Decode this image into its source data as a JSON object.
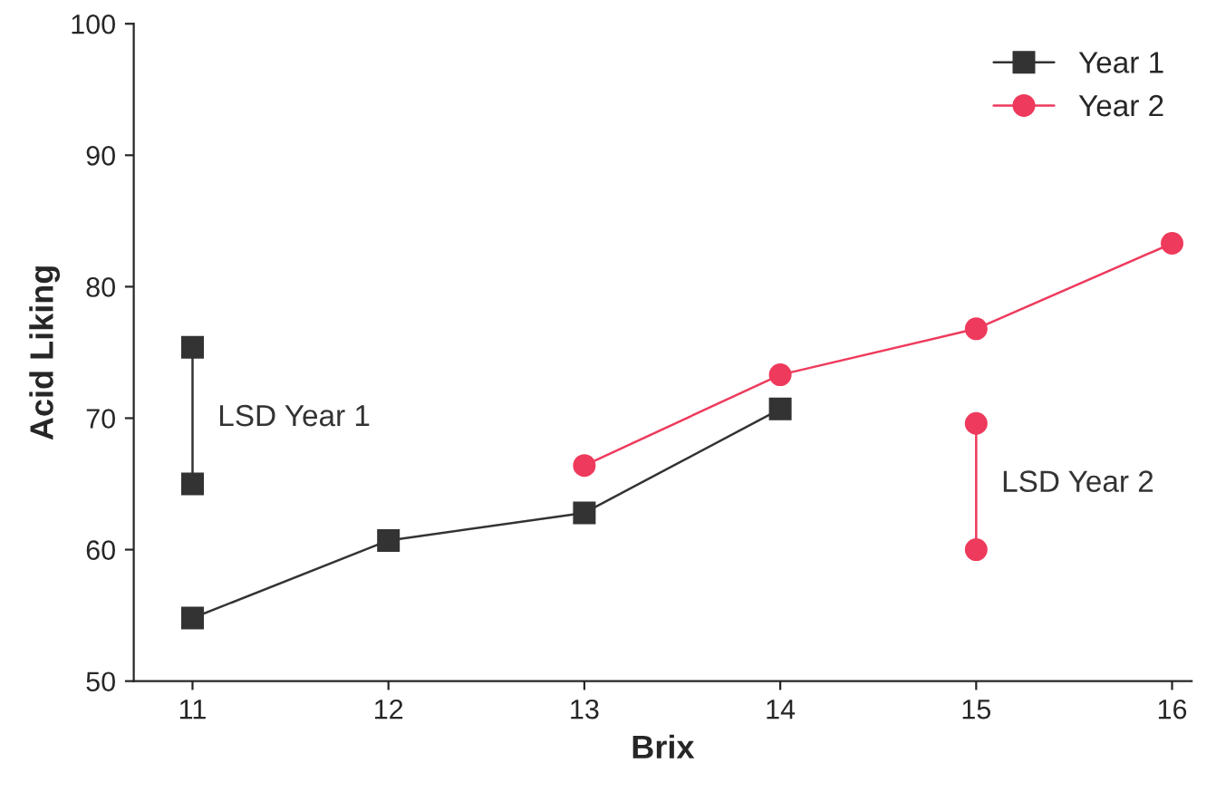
{
  "chart_data": {
    "type": "line",
    "xlabel": "Brix",
    "ylabel": "Acid Liking",
    "xlim": [
      10.7,
      16.1
    ],
    "xticks": [
      11,
      12,
      13,
      14,
      15,
      16
    ],
    "ylim": [
      50,
      100
    ],
    "yticks": [
      50,
      60,
      70,
      80,
      90,
      100
    ],
    "grid": false,
    "legend": "top right",
    "line_style": "solid",
    "series": [
      {
        "name": "Year 1",
        "color": "#333333",
        "marker": "square",
        "x": [
          11,
          12,
          13,
          14
        ],
        "values": [
          54.8,
          60.7,
          62.8,
          70.7
        ]
      },
      {
        "name": "Year 2",
        "color": "#ee3a5c",
        "marker": "circle",
        "x": [
          13,
          14,
          15,
          16
        ],
        "values": [
          66.4,
          73.3,
          76.8,
          83.3
        ]
      },
      {
        "color": "#333333",
        "marker": "square",
        "x": [
          11,
          11
        ],
        "values": [
          65.0,
          75.4
        ]
      },
      {
        "color": "#ee3a5c",
        "marker": "circle",
        "x": [
          15,
          15
        ],
        "values": [
          60.0,
          69.6
        ]
      }
    ],
    "annotations": [
      {
        "text": "LSD Year 1",
        "x": 11,
        "y": 70
      },
      {
        "text": "LSD Year 2",
        "x": 15,
        "y": 65
      }
    ]
  }
}
